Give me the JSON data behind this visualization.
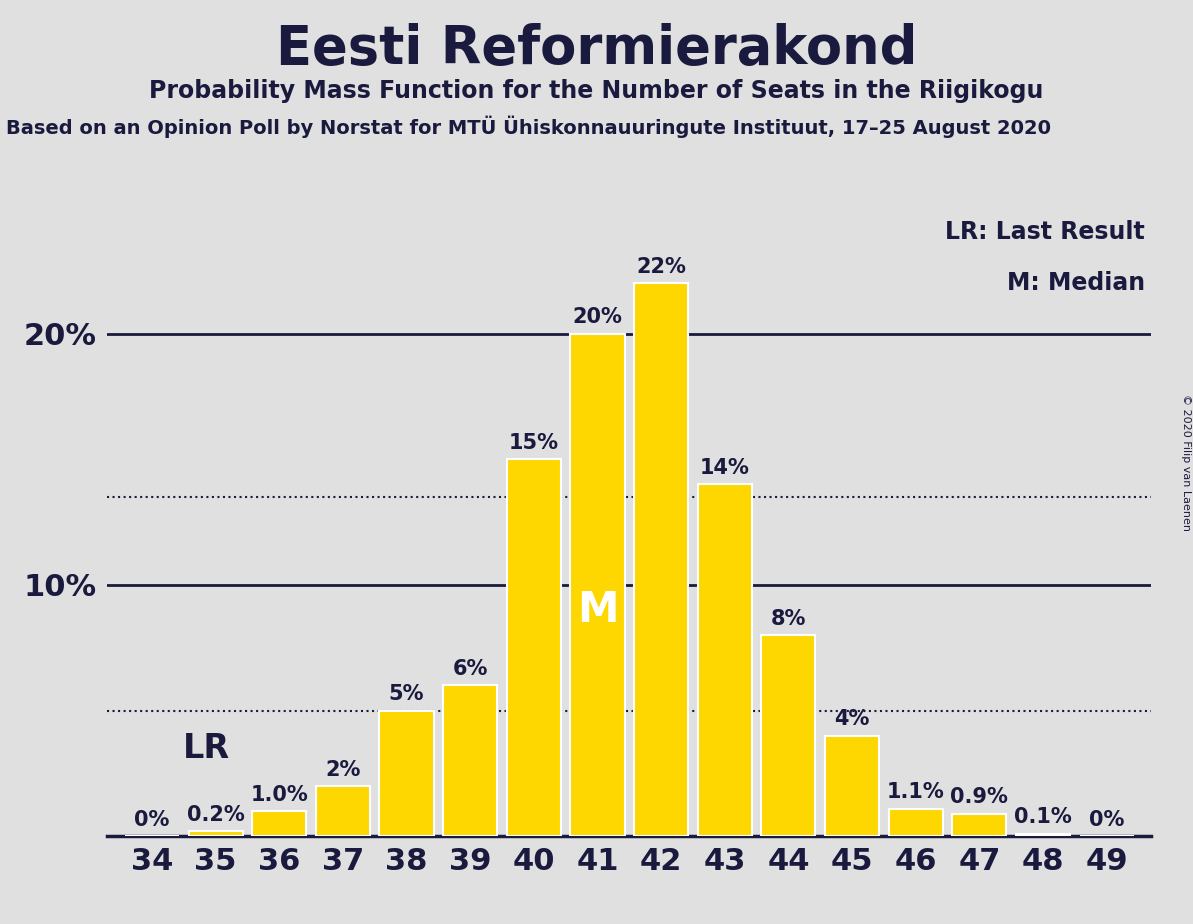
{
  "title": "Eesti Reformierakond",
  "subtitle": "Probability Mass Function for the Number of Seats in the Riigikogu",
  "source_line": "Based on an Opinion Poll by Norstat for MTÜ Ühiskonnauuringute Instituut, 17–25 August 2020",
  "copyright": "© 2020 Filip van Laenen",
  "seats": [
    34,
    35,
    36,
    37,
    38,
    39,
    40,
    41,
    42,
    43,
    44,
    45,
    46,
    47,
    48,
    49
  ],
  "probabilities": [
    0.0,
    0.2,
    1.0,
    2.0,
    5.0,
    6.0,
    15.0,
    20.0,
    22.0,
    14.0,
    8.0,
    4.0,
    1.1,
    0.9,
    0.1,
    0.0
  ],
  "bar_color": "#FFD700",
  "bar_edge_color": "#FFFFFF",
  "background_color": "#E0E0E0",
  "plot_bg_color": "#E0E0E0",
  "text_color": "#1a1a3e",
  "title_fontsize": 38,
  "subtitle_fontsize": 17,
  "source_fontsize": 14,
  "label_fontsize": 15,
  "tick_fontsize": 22,
  "ytick_fontsize": 22,
  "legend_fontsize": 17,
  "median_seat": 41,
  "lr_seat": 34,
  "lr_value": 5.0,
  "dotted_line_1": 13.5,
  "dotted_line_2": 5.0,
  "solid_lines": [
    10.0,
    20.0
  ],
  "ylim": [
    0,
    25
  ],
  "ytick_positions": [
    10,
    20
  ],
  "ytick_labels": [
    "10%",
    "20%"
  ],
  "xlim_left": 33.3,
  "xlim_right": 49.7
}
